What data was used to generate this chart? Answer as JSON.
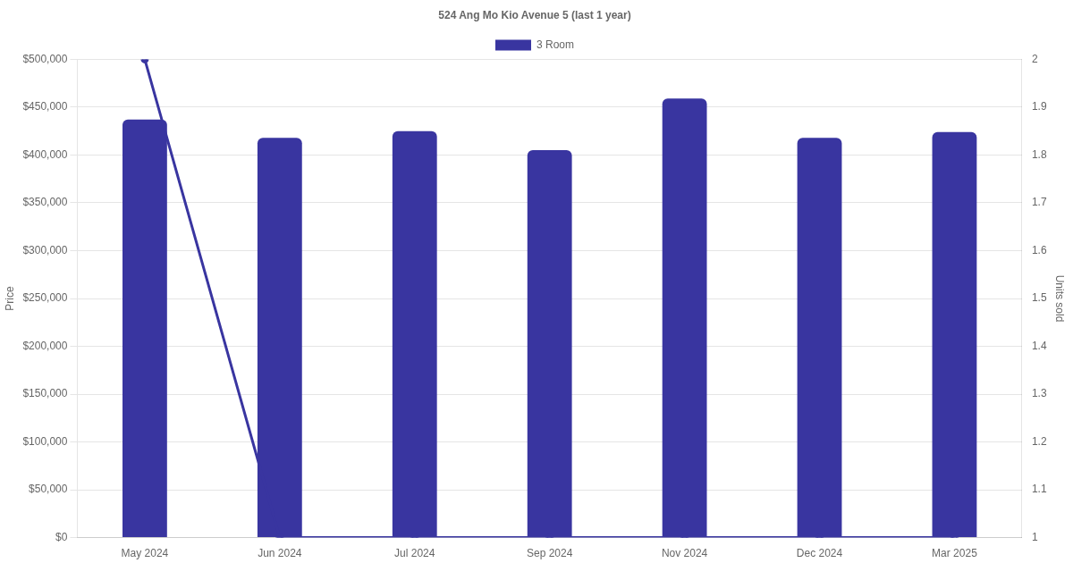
{
  "chart_data": {
    "type": "bar",
    "title": "524 Ang Mo Kio Avenue 5 (last 1 year)",
    "ylabel": "Price",
    "y2label": "Units sold",
    "categories": [
      "May 2024",
      "Jun 2024",
      "Jul 2024",
      "Sep 2024",
      "Nov 2024",
      "Dec 2024",
      "Mar 2025"
    ],
    "series": [
      {
        "name": "3 Room",
        "color": "#3935a0",
        "values": [
          437000,
          418000,
          425000,
          405000,
          459000,
          418000,
          424000
        ]
      },
      {
        "type": "line",
        "axis": "y2",
        "color": "#3935a0",
        "values": [
          2,
          1,
          1,
          1,
          1,
          1,
          1
        ]
      }
    ],
    "ylim": [
      0,
      500000
    ],
    "yticks": [
      {
        "value": 0,
        "label": "$0"
      },
      {
        "value": 50000,
        "label": "$50,000"
      },
      {
        "value": 100000,
        "label": "$100,000"
      },
      {
        "value": 150000,
        "label": "$150,000"
      },
      {
        "value": 200000,
        "label": "$200,000"
      },
      {
        "value": 250000,
        "label": "$250,000"
      },
      {
        "value": 300000,
        "label": "$300,000"
      },
      {
        "value": 350000,
        "label": "$350,000"
      },
      {
        "value": 400000,
        "label": "$400,000"
      },
      {
        "value": 450000,
        "label": "$450,000"
      },
      {
        "value": 500000,
        "label": "$500,000"
      }
    ],
    "y2lim": [
      1,
      2
    ],
    "y2ticks": [
      1,
      1.1,
      1.2,
      1.3,
      1.4,
      1.5,
      1.6,
      1.7,
      1.8,
      1.9,
      2
    ],
    "grid": "y",
    "legend": "top",
    "marker": "circle",
    "line_style": "solid"
  }
}
